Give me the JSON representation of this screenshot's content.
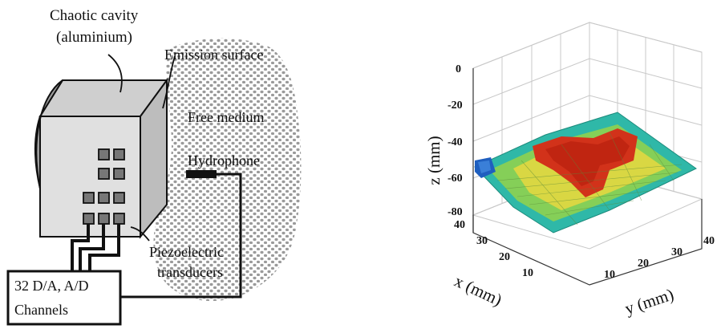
{
  "schematic": {
    "labels": {
      "cavity_line1": "Chaotic cavity",
      "cavity_line2": "(aluminium)",
      "emission_surface": "Emission surface",
      "free_medium": "Free medium",
      "hydrophone": "Hydrophone",
      "piezo_line1": "Piezoelectric",
      "piezo_line2": "transducers",
      "channels_line1": "32 D/A, A/D",
      "channels_line2": "Channels"
    },
    "colors": {
      "cavity_face": "#e0e0e0",
      "cavity_top": "#cfcfcf",
      "cavity_side": "#bdbdbd",
      "medium_dots": "#9a9a9a",
      "line": "#111111"
    }
  },
  "surface_plot": {
    "z_axis_label": "z (mm)",
    "x_axis_label": "x (mm)",
    "y_axis_label": "y (mm)",
    "z_ticks": [
      "0",
      "-20",
      "-40",
      "-60",
      "-80"
    ],
    "x_ticks": [
      "40",
      "30",
      "20",
      "10"
    ],
    "y_ticks": [
      "10",
      "20",
      "30",
      "40"
    ],
    "colors": {
      "low": "#1f5fbf",
      "mid_low": "#2fb8a8",
      "mid": "#8fd14f",
      "mid_high": "#e8d840",
      "high": "#d2321a",
      "grid": "#c8c8c8"
    }
  }
}
